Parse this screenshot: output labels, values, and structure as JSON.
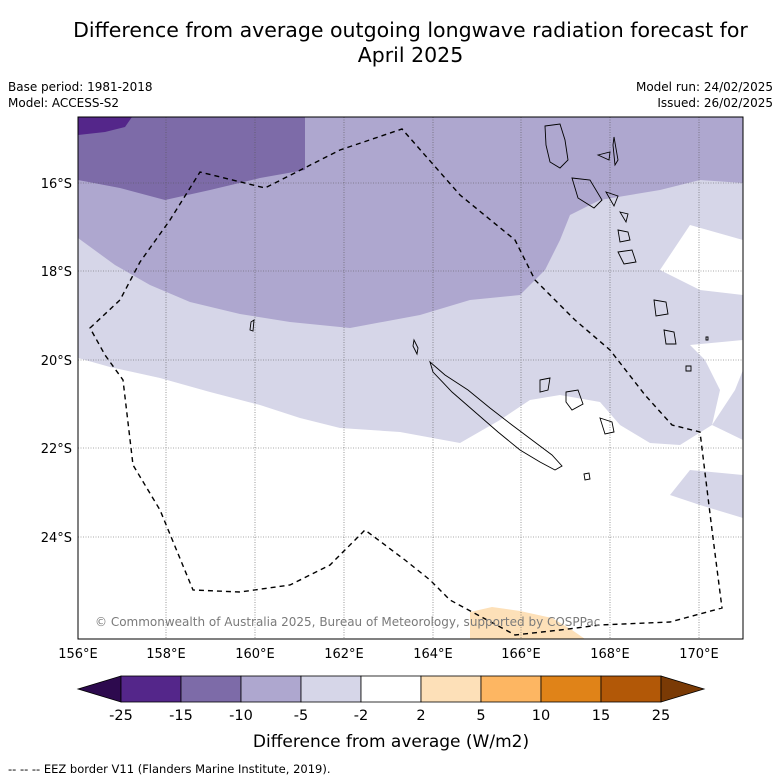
{
  "title_line1": "Difference from average outgoing longwave radiation forecast for",
  "title_line2": "April 2025",
  "base_period": "Base period: 1981-2018",
  "model": "Model: ACCESS-S2",
  "model_run": "Model run: 24/02/2025",
  "issued": "Issued: 26/02/2025",
  "copyright": "© Commonwealth of Australia 2025, Bureau of Meteorology, supported by COSPPac",
  "axes": {
    "lon_range": [
      156,
      171
    ],
    "lat_range": [
      -26.5,
      -14.7
    ],
    "lon_ticks": [
      "156°E",
      "158°E",
      "160°E",
      "162°E",
      "164°E",
      "166°E",
      "168°E",
      "170°E"
    ],
    "lat_ticks": [
      "16°S",
      "18°S",
      "20°S",
      "22°S",
      "24°S"
    ]
  },
  "colorbar": {
    "label": "Difference from average (W/m2)",
    "ticks": [
      "-25",
      "-15",
      "-10",
      "-5",
      "-2",
      "2",
      "5",
      "10",
      "15",
      "25"
    ],
    "colors": [
      "#2d0a4e",
      "#54268a",
      "#7d6ba8",
      "#aea7cf",
      "#d6d6e8",
      "#ffffff",
      "#fde0b8",
      "#fdb662",
      "#e08318",
      "#b25807",
      "#7a3a05"
    ]
  },
  "footer": "--  --  -- EEZ border V11 (Flanders Marine Institute, 2019)."
}
